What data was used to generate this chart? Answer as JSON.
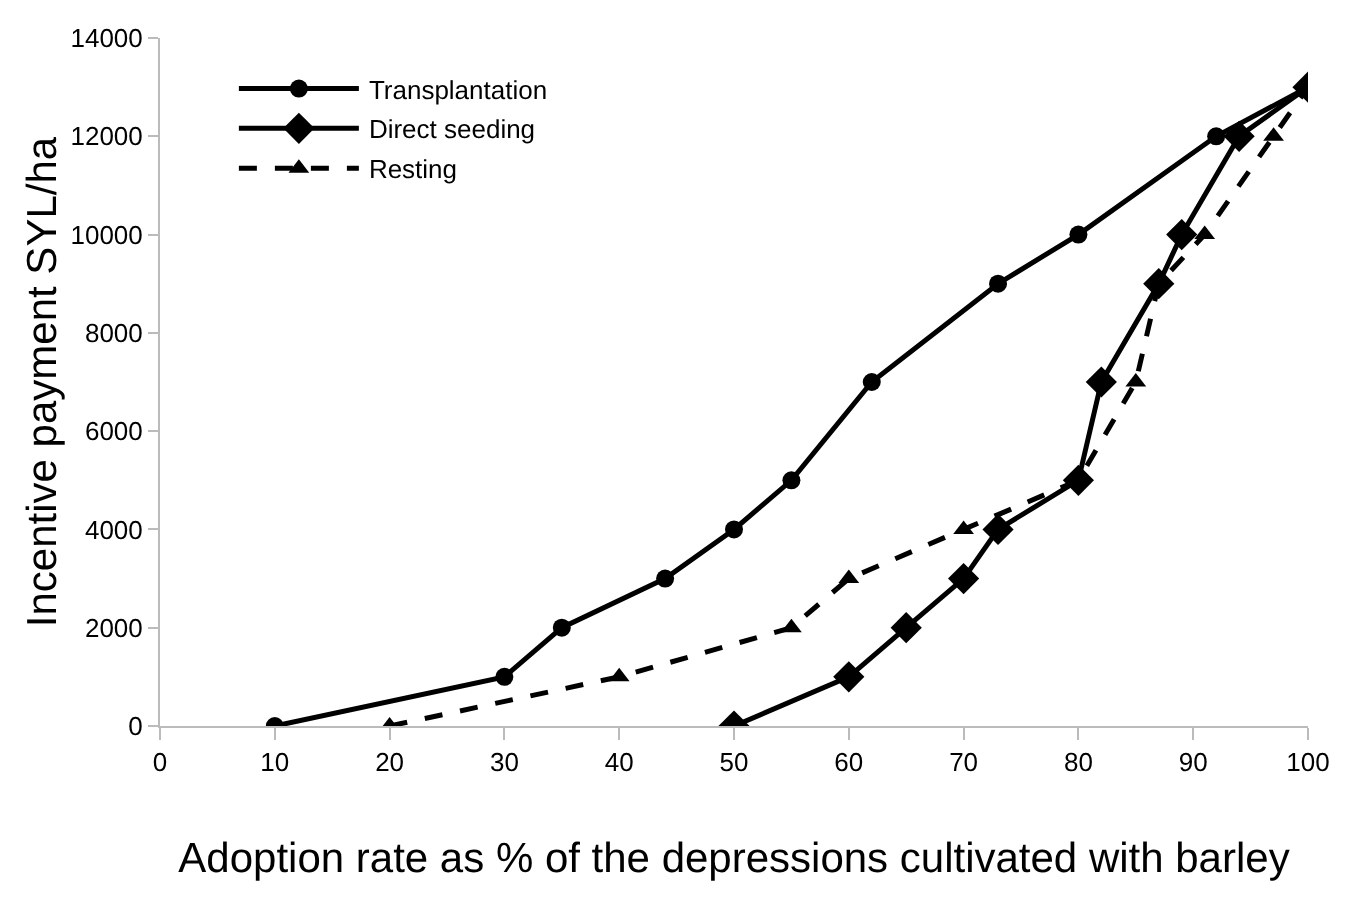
{
  "chart_data": {
    "type": "line",
    "xlabel": "Adoption rate as % of the depressions cultivated with barley",
    "ylabel": "Incentive payment SYL/ha",
    "xlim": [
      0,
      100
    ],
    "xticks": [
      0,
      10,
      20,
      30,
      40,
      50,
      60,
      70,
      80,
      90,
      100
    ],
    "ylim": [
      0,
      14000
    ],
    "yticks": [
      0,
      2000,
      4000,
      6000,
      8000,
      10000,
      12000,
      14000
    ],
    "grid": false,
    "legend": "top left",
    "series": [
      {
        "name": "Transplantation",
        "color": "#000000",
        "marker": "circle",
        "line_style": "solid",
        "x": [
          10,
          30,
          35,
          44,
          50,
          55,
          62,
          73,
          80,
          92,
          100
        ],
        "values": [
          0,
          1000,
          2000,
          3000,
          4000,
          5000,
          7000,
          9000,
          10000,
          12000,
          13000
        ]
      },
      {
        "name": "Direct seeding",
        "color": "#000000",
        "marker": "diamond",
        "line_style": "solid",
        "x": [
          50,
          60,
          65,
          70,
          73,
          80,
          82,
          87,
          89,
          94,
          100
        ],
        "values": [
          0,
          1000,
          2000,
          3000,
          4000,
          5000,
          7000,
          9000,
          10000,
          12000,
          13000
        ]
      },
      {
        "name": "Resting",
        "color": "#000000",
        "marker": "triangle",
        "line_style": "dashed",
        "x": [
          20,
          40,
          55,
          60,
          70,
          80,
          85,
          87,
          91,
          97,
          100
        ],
        "values": [
          0,
          1000,
          2000,
          3000,
          4000,
          5000,
          7000,
          9000,
          10000,
          12000,
          13000
        ]
      }
    ]
  }
}
